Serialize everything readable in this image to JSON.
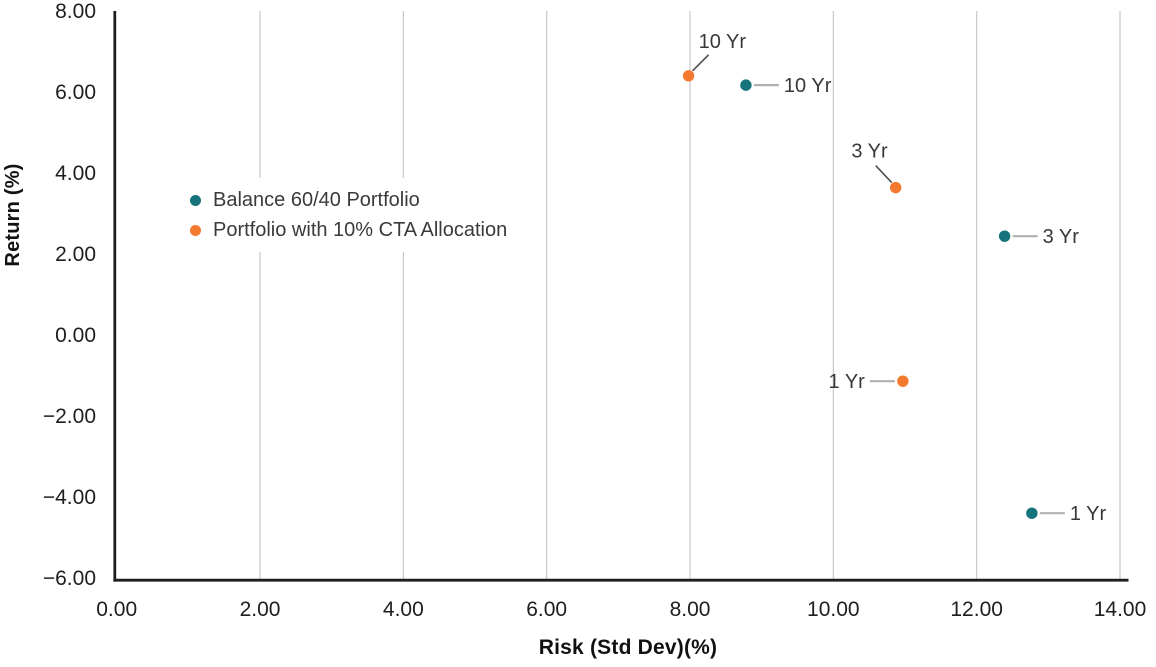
{
  "chart_data": {
    "type": "scatter",
    "xlabel": "Risk (Std Dev)(%)",
    "ylabel": "Return (%)",
    "xlim": [
      0,
      14
    ],
    "ylim": [
      -6,
      8
    ],
    "xticks": [
      "0.00",
      "2.00",
      "4.00",
      "6.00",
      "8.00",
      "10.00",
      "12.00",
      "14.00"
    ],
    "yticks": [
      "8.00",
      "6.00",
      "4.00",
      "2.00",
      "0.00",
      "−2.00",
      "−4.00",
      "−6.00"
    ],
    "grid": "vertical-gridlines-only",
    "legend_position": "inside-upper-left",
    "series": [
      {
        "name": "Balance 60/40 Portfolio",
        "color": "#15737B",
        "points": [
          {
            "label": "10 Yr",
            "x": 8.78,
            "y": 6.17,
            "label_side": "right"
          },
          {
            "label": "3 Yr",
            "x": 12.39,
            "y": 2.44,
            "label_side": "right"
          },
          {
            "label": "1 Yr",
            "x": 12.77,
            "y": -4.4,
            "label_side": "right"
          }
        ]
      },
      {
        "name": "Portfolio with 10% CTA Allocation",
        "color": "#F2792D",
        "points": [
          {
            "label": "10 Yr",
            "x": 7.98,
            "y": 6.4,
            "label_side": "above-right"
          },
          {
            "label": "3 Yr",
            "x": 10.87,
            "y": 3.64,
            "label_side": "above-left"
          },
          {
            "label": "1 Yr",
            "x": 10.97,
            "y": -1.14,
            "label_side": "left"
          }
        ]
      }
    ],
    "colors": {
      "gridline": "#C8C8C8",
      "axis": "#1E1E1E",
      "tick_text": "#1E1E1E",
      "annotation_text": "#383838",
      "connector_light": "#B0B0B0",
      "connector_dark": "#4F4F4F"
    }
  }
}
